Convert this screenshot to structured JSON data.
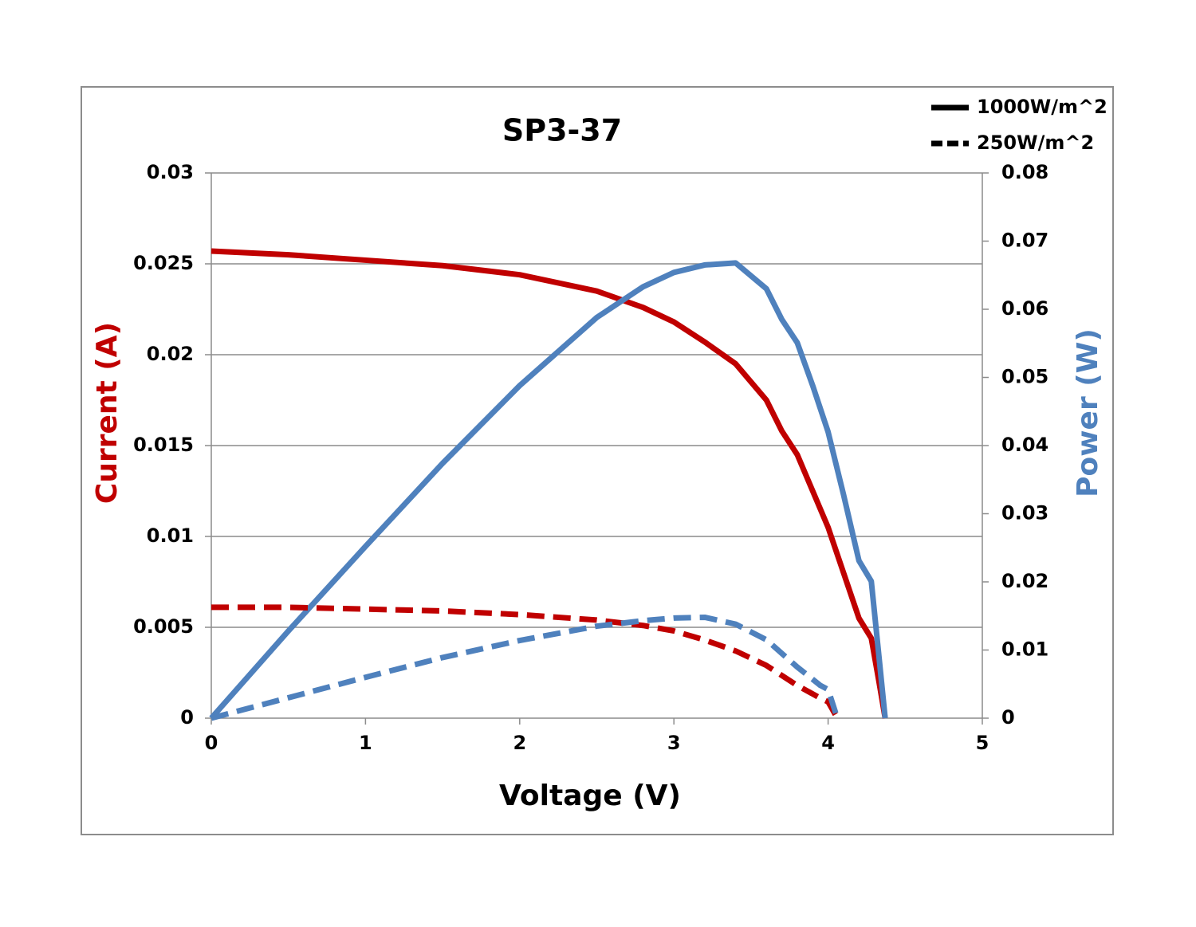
{
  "chart_data": {
    "type": "line",
    "title": "SP3-37",
    "xlabel": "Voltage (V)",
    "ylabel": "Current (A)",
    "y2label": "Power (W)",
    "ycolor": "#c00000",
    "y2color": "#4f81bd",
    "xlim": [
      0,
      5
    ],
    "xticks": [
      0,
      1,
      2,
      3,
      4,
      5
    ],
    "ylim": [
      0,
      0.03
    ],
    "yticks": [
      0,
      0.005,
      0.01,
      0.015,
      0.02,
      0.025,
      0.03
    ],
    "y2lim": [
      0,
      0.08
    ],
    "y2ticks": [
      0,
      0.01,
      0.02,
      0.03,
      0.04,
      0.05,
      0.06,
      0.07,
      0.08
    ],
    "grid": true,
    "legend": "top-right",
    "series": [
      {
        "name": "1000W/m^2",
        "dash": "solid",
        "x": [
          0,
          0.5,
          1,
          1.5,
          2,
          2.5,
          2.8,
          3,
          3.2,
          3.4,
          3.6,
          3.7,
          3.8,
          3.9,
          4.0,
          4.1,
          4.2,
          4.28,
          4.33,
          4.37
        ],
        "current": [
          0.0257,
          0.0255,
          0.0252,
          0.0249,
          0.0244,
          0.0235,
          0.0226,
          0.0218,
          0.0207,
          0.0195,
          0.0175,
          0.0158,
          0.0145,
          0.0125,
          0.0105,
          0.008,
          0.0055,
          0.0044,
          0.002,
          0
        ],
        "power": [
          0,
          0.0128,
          0.0252,
          0.0374,
          0.0488,
          0.0588,
          0.0633,
          0.0654,
          0.0665,
          0.0668,
          0.063,
          0.0585,
          0.0551,
          0.0488,
          0.042,
          0.0328,
          0.0231,
          0.0201,
          0.009,
          0
        ]
      },
      {
        "name": "250W/m^2",
        "dash": "dashed",
        "x": [
          0,
          0.5,
          1,
          1.5,
          2,
          2.5,
          2.8,
          3,
          3.2,
          3.4,
          3.6,
          3.8,
          3.95,
          4.0,
          4.06
        ],
        "current": [
          0.0061,
          0.0061,
          0.006,
          0.0059,
          0.0057,
          0.0054,
          0.0051,
          0.0048,
          0.0043,
          0.0037,
          0.0029,
          0.0018,
          0.0011,
          0.0009,
          0
        ],
        "power": [
          0,
          0.003,
          0.006,
          0.0089,
          0.0114,
          0.0135,
          0.0143,
          0.0147,
          0.0148,
          0.0138,
          0.0115,
          0.0075,
          0.0048,
          0.0042,
          0
        ]
      }
    ]
  }
}
